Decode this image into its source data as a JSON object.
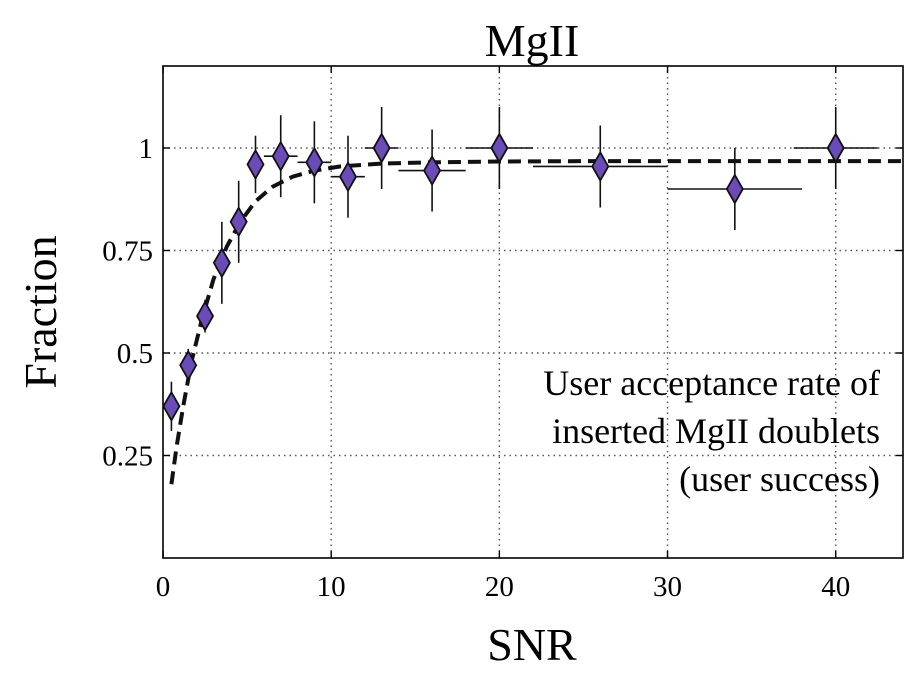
{
  "chart_data": {
    "type": "scatter",
    "title": "MgII",
    "xlabel": "SNR",
    "ylabel": "Fraction",
    "xlim": [
      0,
      44
    ],
    "ylim": [
      0,
      1.2
    ],
    "xticks": [
      0,
      10,
      20,
      30,
      40
    ],
    "xtick_labels": [
      "0",
      "10",
      "20",
      "30",
      "40"
    ],
    "yticks": [
      0.25,
      0.5,
      0.75,
      1
    ],
    "ytick_labels": [
      "0.25",
      "0.5",
      "0.75",
      "1"
    ],
    "grid": true,
    "marker_color": "#6a4bb8",
    "annotation": [
      "User acceptance rate of",
      "inserted MgII doublets",
      "(user success)"
    ],
    "points": [
      {
        "x": 0.5,
        "y": 0.37,
        "xerr": [
          0.5,
          0.5
        ],
        "yerr": 0.06
      },
      {
        "x": 1.5,
        "y": 0.47,
        "xerr": [
          0.5,
          0.5
        ],
        "yerr": 0.04
      },
      {
        "x": 2.5,
        "y": 0.59,
        "xerr": [
          0.5,
          0.5
        ],
        "yerr": 0.04
      },
      {
        "x": 3.5,
        "y": 0.72,
        "xerr": [
          0.5,
          0.5
        ],
        "yerr": 0.1
      },
      {
        "x": 4.5,
        "y": 0.82,
        "xerr": [
          0.5,
          0.5
        ],
        "yerr": 0.1
      },
      {
        "x": 5.5,
        "y": 0.96,
        "xerr": [
          0.5,
          0.5
        ],
        "yerr": 0.07
      },
      {
        "x": 7,
        "y": 0.98,
        "xerr": [
          1,
          1
        ],
        "yerr": 0.1
      },
      {
        "x": 9,
        "y": 0.965,
        "xerr": [
          1,
          1
        ],
        "yerr": 0.1
      },
      {
        "x": 11,
        "y": 0.93,
        "xerr": [
          1,
          1
        ],
        "yerr": 0.1
      },
      {
        "x": 13,
        "y": 1.0,
        "xerr": [
          1,
          1
        ],
        "yerr": 0.1
      },
      {
        "x": 16,
        "y": 0.945,
        "xerr": [
          2,
          2
        ],
        "yerr": 0.1
      },
      {
        "x": 20,
        "y": 1.0,
        "xerr": [
          2,
          2
        ],
        "yerr": 0.1
      },
      {
        "x": 26,
        "y": 0.955,
        "xerr": [
          4,
          4
        ],
        "yerr": 0.1
      },
      {
        "x": 34,
        "y": 0.9,
        "xerr": [
          4,
          4
        ],
        "yerr": 0.1
      },
      {
        "x": 40,
        "y": 1.0,
        "xerr": [
          2.5,
          2.5
        ],
        "yerr": 0.1
      }
    ],
    "fit_curve": {
      "style": "dashed",
      "x": [
        0.5,
        0.8,
        1.2,
        1.7,
        2.3,
        3.0,
        3.8,
        4.6,
        5.5,
        6.5,
        7.7,
        9.0,
        10.5,
        13,
        16,
        20,
        26,
        34,
        44
      ],
      "y": [
        0.18,
        0.27,
        0.37,
        0.48,
        0.58,
        0.68,
        0.76,
        0.82,
        0.87,
        0.905,
        0.93,
        0.945,
        0.955,
        0.962,
        0.965,
        0.967,
        0.968,
        0.968,
        0.968
      ]
    }
  }
}
